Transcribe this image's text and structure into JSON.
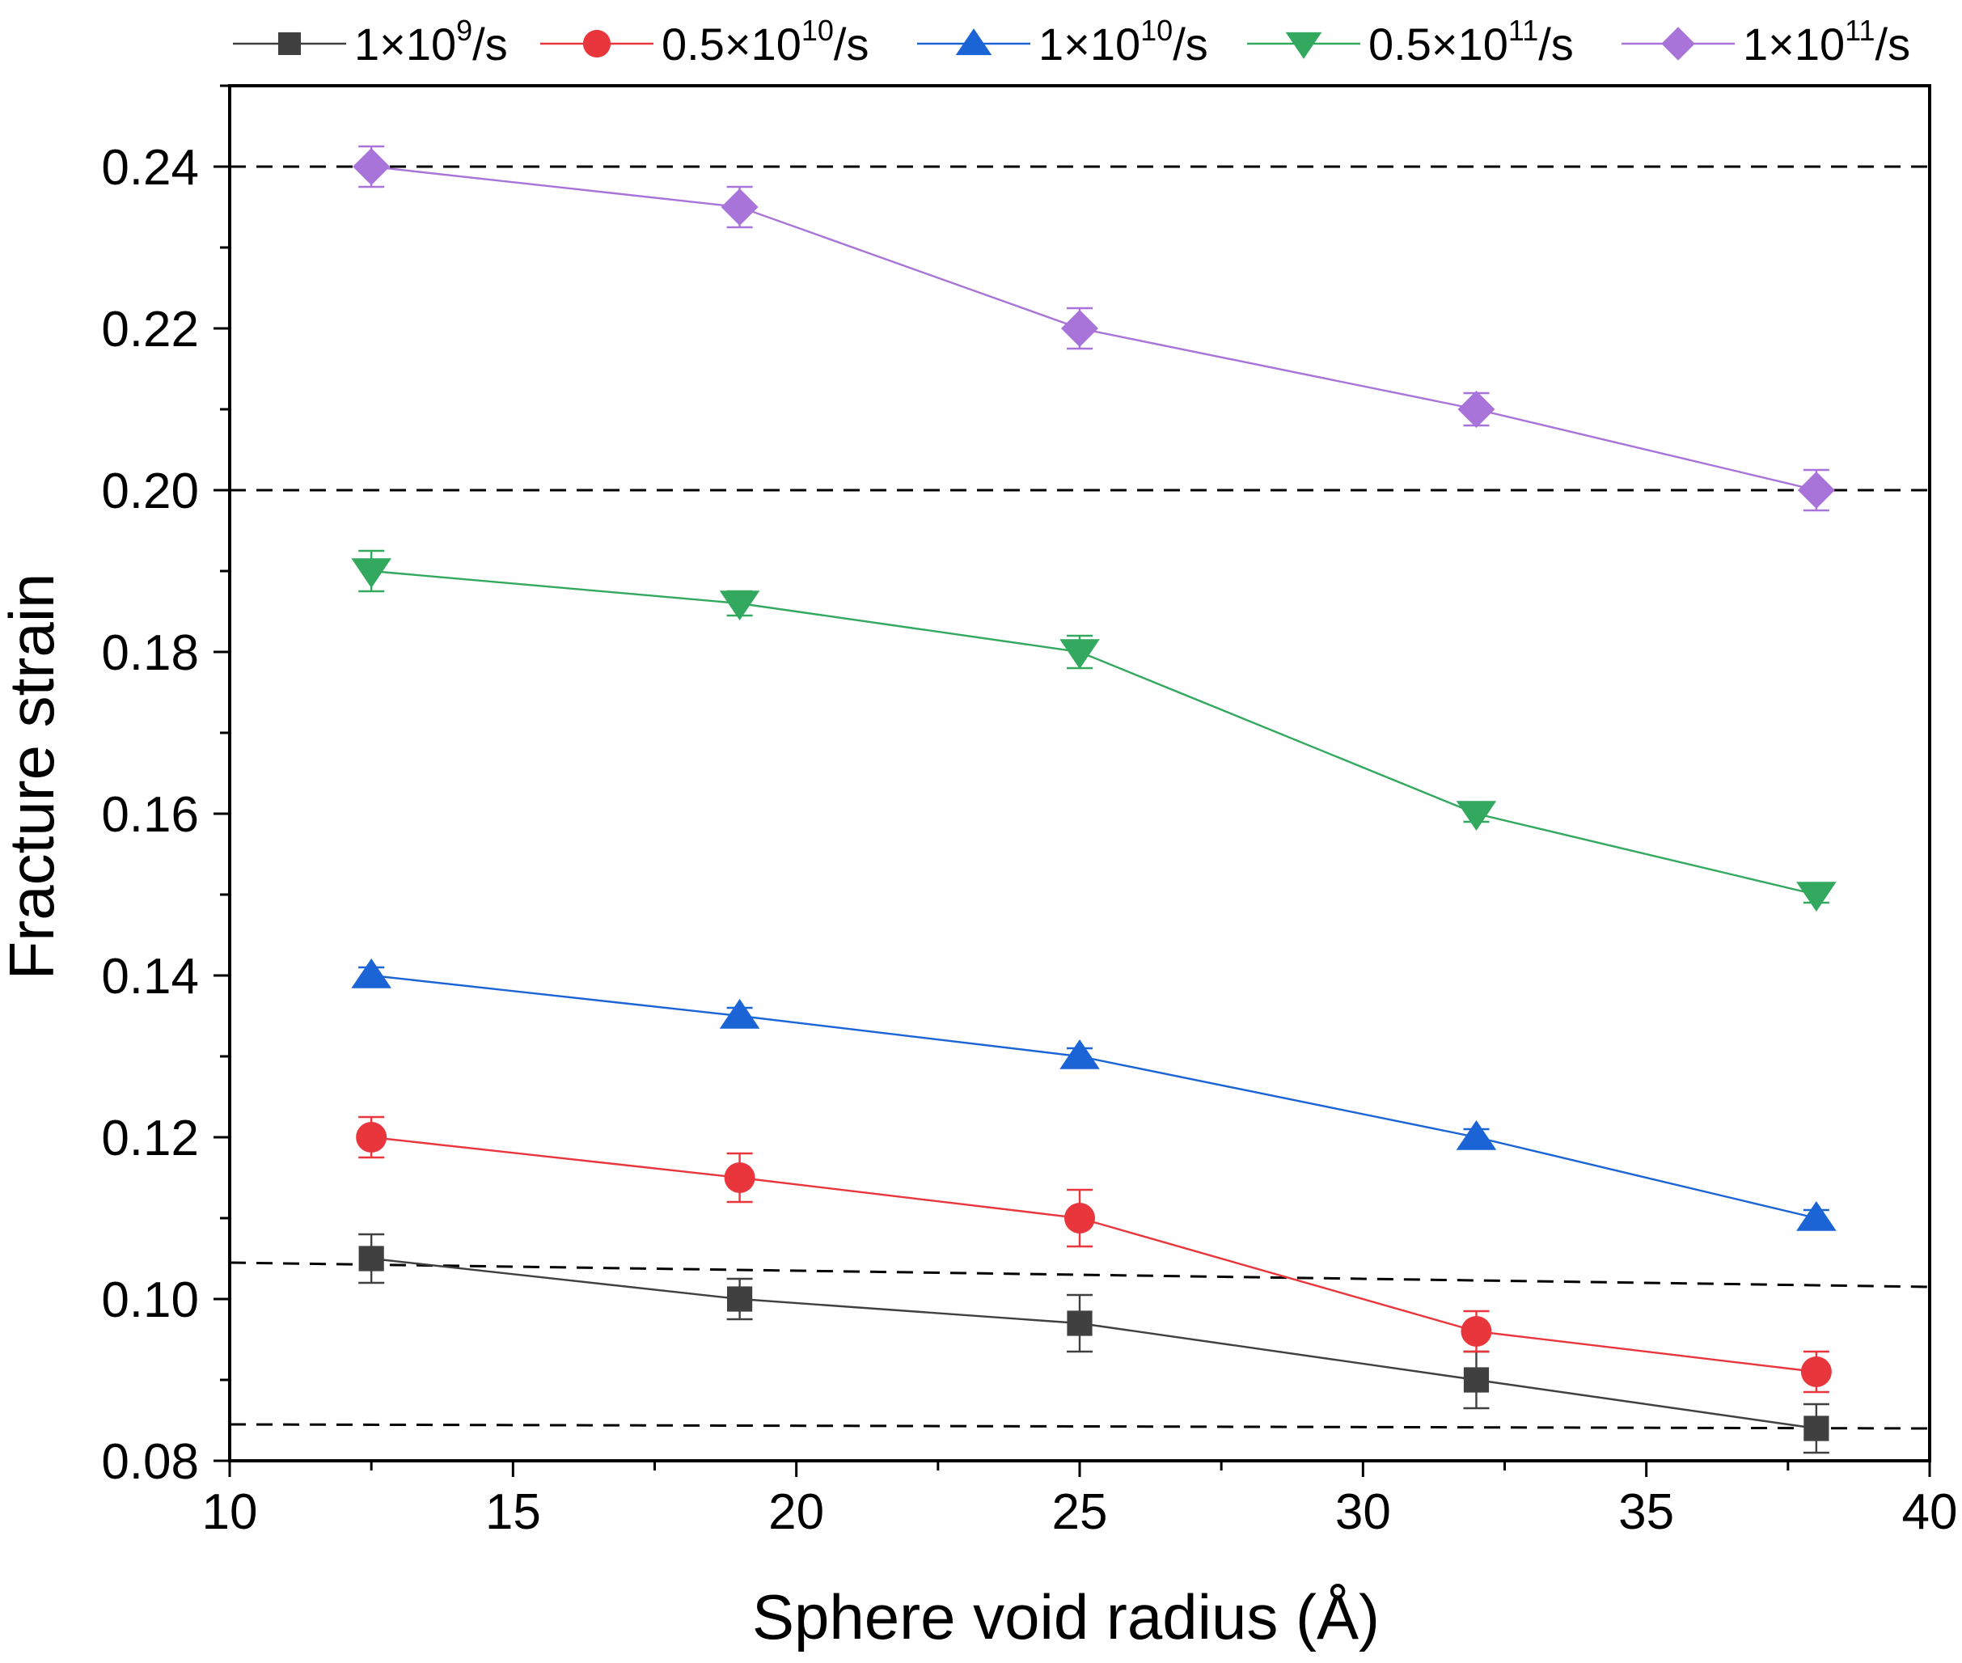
{
  "chart_data": {
    "type": "line",
    "title": "",
    "xlabel": "Sphere void radius (Å)",
    "ylabel": "Fracture strain",
    "xlim": [
      10,
      40
    ],
    "ylim": [
      0.08,
      0.25
    ],
    "xticks": [
      10,
      15,
      20,
      25,
      30,
      35,
      40
    ],
    "yticks": [
      0.08,
      0.1,
      0.12,
      0.14,
      0.16,
      0.18,
      0.2,
      0.22,
      0.24
    ],
    "xtick_labels": [
      "10",
      "15",
      "20",
      "25",
      "30",
      "35",
      "40"
    ],
    "ytick_labels": [
      "0.08",
      "0.10",
      "0.12",
      "0.14",
      "0.16",
      "0.18",
      "0.20",
      "0.22",
      "0.24"
    ],
    "grid": false,
    "legend_position": "top",
    "x": [
      12.5,
      19,
      25,
      32,
      38
    ],
    "series": [
      {
        "name": "1×10⁹/s",
        "legend_base": "1×10",
        "legend_exp": "9",
        "legend_suffix": "/s",
        "marker": "square",
        "color": "#404040",
        "values": [
          0.105,
          0.1,
          0.097,
          0.09,
          0.084
        ],
        "errors": [
          0.003,
          0.0025,
          0.0035,
          0.0035,
          0.003
        ]
      },
      {
        "name": "0.5×10¹⁰/s",
        "legend_base": "0.5×10",
        "legend_exp": "10",
        "legend_suffix": "/s",
        "marker": "circle",
        "color": "#e8363c",
        "values": [
          0.12,
          0.115,
          0.11,
          0.096,
          0.091
        ],
        "errors": [
          0.0025,
          0.003,
          0.0035,
          0.0025,
          0.0025
        ]
      },
      {
        "name": "1×10¹⁰/s",
        "legend_base": "1×10",
        "legend_exp": "10",
        "legend_suffix": "/s",
        "marker": "triangle-up",
        "color": "#1b64d6",
        "values": [
          0.14,
          0.135,
          0.13,
          0.12,
          0.11
        ],
        "errors": [
          0.001,
          0.001,
          0.001,
          0.001,
          0.001
        ]
      },
      {
        "name": "0.5×10¹¹/s",
        "legend_base": "0.5×10",
        "legend_exp": "11",
        "legend_suffix": "/s",
        "marker": "triangle-down",
        "color": "#32a95e",
        "values": [
          0.19,
          0.186,
          0.18,
          0.16,
          0.15
        ],
        "errors": [
          0.0025,
          0.0015,
          0.002,
          0.001,
          0.001
        ]
      },
      {
        "name": "1×10¹¹/s",
        "legend_base": "1×10",
        "legend_exp": "11",
        "legend_suffix": "/s",
        "marker": "diamond",
        "color": "#a974d9",
        "values": [
          0.24,
          0.235,
          0.22,
          0.21,
          0.2
        ],
        "errors": [
          0.0025,
          0.0025,
          0.0025,
          0.002,
          0.0025
        ]
      }
    ],
    "reference_lines": [
      {
        "style": "dashed",
        "color": "#000000",
        "x": [
          10,
          40
        ],
        "y": [
          0.24,
          0.24
        ]
      },
      {
        "style": "dashed",
        "color": "#000000",
        "x": [
          10,
          40
        ],
        "y": [
          0.2,
          0.2
        ]
      },
      {
        "style": "dashed",
        "color": "#000000",
        "x": [
          10,
          40
        ],
        "y": [
          0.1045,
          0.1015
        ]
      },
      {
        "style": "dashed",
        "color": "#000000",
        "x": [
          10,
          40
        ],
        "y": [
          0.0845,
          0.084
        ]
      }
    ]
  }
}
